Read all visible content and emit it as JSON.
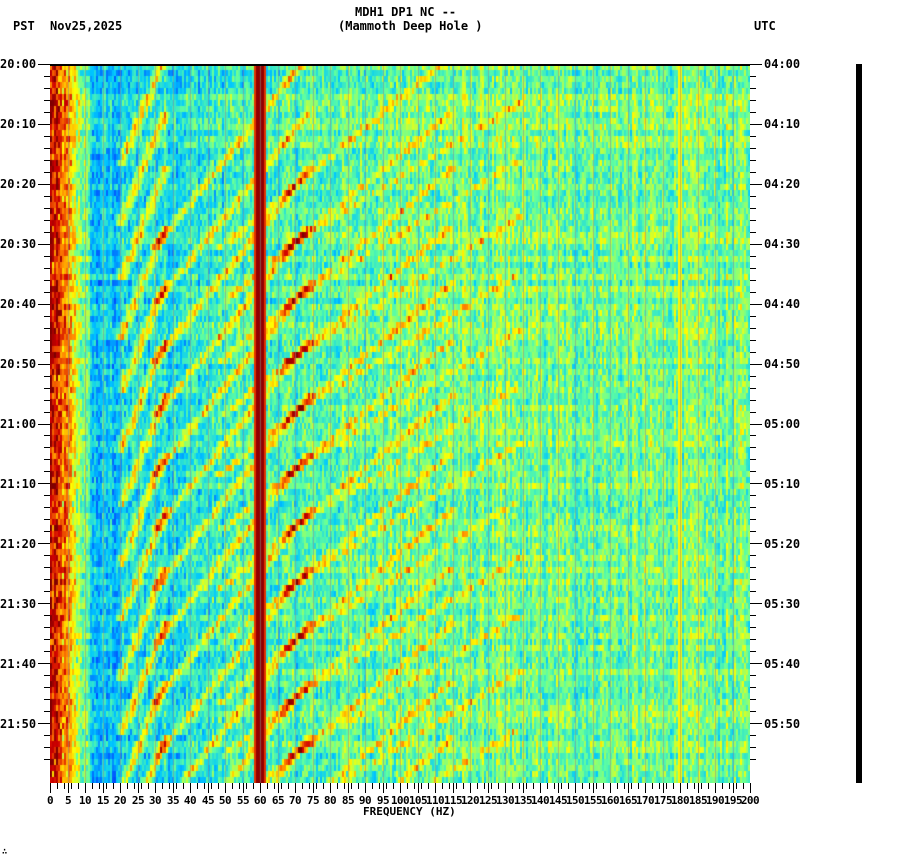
{
  "header": {
    "station": "MDH1 DP1 NC --",
    "site": "(Mammoth Deep Hole )",
    "left_tz": "PST",
    "date": "Nov25,2025",
    "right_tz": "UTC"
  },
  "footer_mark": "∴",
  "chart_data": {
    "type": "heatmap",
    "title": "MDH1 DP1 NC -- (Mammoth Deep Hole )",
    "subtitle": "Nov25,2025",
    "xlabel": "FREQUENCY (HZ)",
    "ylabel_left": "PST",
    "ylabel_right": "UTC",
    "xlim": [
      0,
      200
    ],
    "x_ticks": [
      0,
      5,
      10,
      15,
      20,
      25,
      30,
      35,
      40,
      45,
      50,
      55,
      60,
      65,
      70,
      75,
      80,
      85,
      90,
      95,
      100,
      105,
      110,
      115,
      120,
      125,
      130,
      135,
      140,
      145,
      150,
      155,
      160,
      165,
      170,
      175,
      180,
      185,
      190,
      195,
      200
    ],
    "y_ticks_left": [
      "20:00",
      "20:10",
      "20:20",
      "20:30",
      "20:40",
      "20:50",
      "21:00",
      "21:10",
      "21:20",
      "21:30",
      "21:40",
      "21:50"
    ],
    "y_ticks_right": [
      "04:00",
      "04:10",
      "04:20",
      "04:30",
      "04:40",
      "04:50",
      "05:00",
      "05:10",
      "05:20",
      "05:30",
      "05:40",
      "05:50"
    ],
    "time_range_minutes": 120,
    "colormap": [
      "#00008f",
      "#0050ff",
      "#00c8ff",
      "#60ffa0",
      "#ffff00",
      "#ff8000",
      "#d00000",
      "#800000"
    ],
    "features": {
      "persistent_line_hz": 60,
      "weak_line_hz": 180,
      "low_freq_energy_hz": [
        0,
        12
      ],
      "gliding_harmonics": "repeating downward-curving tonal arcs (fundamental ~20-60 Hz) roughly every 8-10 minutes"
    }
  }
}
